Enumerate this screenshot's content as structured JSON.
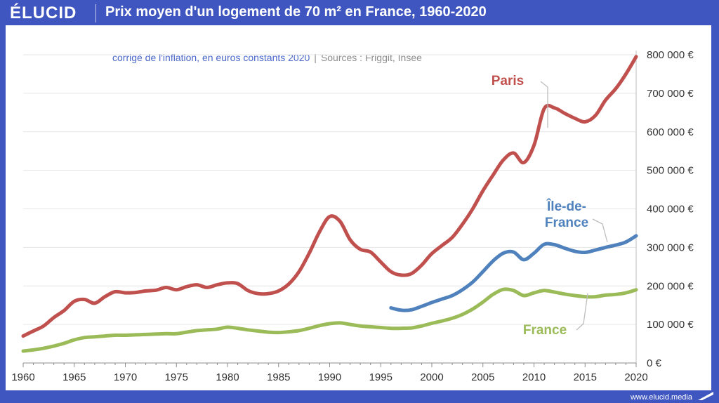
{
  "brand": {
    "logo": "ÉLUCID",
    "website": "www.elucid.media"
  },
  "header": {
    "title": "Prix moyen d'un logement de 70 m² en France, 1960-2020",
    "subtitle_main": "corrigé de l'inflation, en euros constants 2020",
    "subtitle_separator": "|",
    "subtitle_sources": "Sources : Friggit, Insee"
  },
  "colors": {
    "frame": "#3f56c0",
    "paris": "#c0504d",
    "ile_de_france": "#4f81bd",
    "france": "#9bbb59",
    "grid": "#e6e6e6",
    "axis_text": "#333333"
  },
  "chart_data": {
    "type": "line",
    "title": "Prix moyen d'un logement de 70 m² en France, 1960-2020",
    "xlabel": "",
    "ylabel": "",
    "xlim": [
      1960,
      2020
    ],
    "ylim": [
      0,
      800000
    ],
    "grid": true,
    "y_axis_position": "right",
    "x_ticks": [
      1960,
      1965,
      1970,
      1975,
      1980,
      1985,
      1990,
      1995,
      2000,
      2005,
      2010,
      2015,
      2020
    ],
    "y_ticks": [
      0,
      100000,
      200000,
      300000,
      400000,
      500000,
      600000,
      700000,
      800000
    ],
    "y_tick_labels": [
      "0 €",
      "100 000 €",
      "200 000 €",
      "300 000 €",
      "400 000 €",
      "500 000 €",
      "600 000 €",
      "700 000 €",
      "800 000 €"
    ],
    "series": [
      {
        "name": "Paris",
        "label": "Paris",
        "color": "#c0504d",
        "x": [
          1960,
          1961,
          1962,
          1963,
          1964,
          1965,
          1966,
          1967,
          1968,
          1969,
          1970,
          1971,
          1972,
          1973,
          1974,
          1975,
          1976,
          1977,
          1978,
          1979,
          1980,
          1981,
          1982,
          1983,
          1984,
          1985,
          1986,
          1987,
          1988,
          1989,
          1990,
          1991,
          1992,
          1993,
          1994,
          1995,
          1996,
          1997,
          1998,
          1999,
          2000,
          2001,
          2002,
          2003,
          2004,
          2005,
          2006,
          2007,
          2008,
          2009,
          2010,
          2011,
          2012,
          2013,
          2014,
          2015,
          2016,
          2017,
          2018,
          2019,
          2020
        ],
        "values": [
          70000,
          83000,
          96000,
          118000,
          136000,
          160000,
          165000,
          155000,
          172000,
          185000,
          182000,
          183000,
          187000,
          189000,
          196000,
          190000,
          198000,
          203000,
          196000,
          203000,
          208000,
          206000,
          188000,
          180000,
          180000,
          187000,
          205000,
          237000,
          285000,
          340000,
          380000,
          368000,
          320000,
          295000,
          288000,
          262000,
          237000,
          228000,
          232000,
          254000,
          284000,
          305000,
          326000,
          360000,
          400000,
          447000,
          488000,
          527000,
          545000,
          520000,
          565000,
          660000,
          662000,
          648000,
          635000,
          626000,
          642000,
          682000,
          712000,
          750000,
          795000
        ]
      },
      {
        "name": "Île-de-France",
        "label": "Île-de-France",
        "color": "#4f81bd",
        "x": [
          1996,
          1997,
          1998,
          1999,
          2000,
          2001,
          2002,
          2003,
          2004,
          2005,
          2006,
          2007,
          2008,
          2009,
          2010,
          2011,
          2012,
          2013,
          2014,
          2015,
          2016,
          2017,
          2018,
          2019,
          2020
        ],
        "values": [
          143000,
          137000,
          138000,
          147000,
          157000,
          166000,
          175000,
          190000,
          210000,
          237000,
          265000,
          285000,
          288000,
          268000,
          285000,
          308000,
          307000,
          298000,
          290000,
          287000,
          293000,
          300000,
          306000,
          314000,
          330000
        ]
      },
      {
        "name": "France",
        "label": "France",
        "color": "#9bbb59",
        "x": [
          1960,
          1961,
          1962,
          1963,
          1964,
          1965,
          1966,
          1967,
          1968,
          1969,
          1970,
          1971,
          1972,
          1973,
          1974,
          1975,
          1976,
          1977,
          1978,
          1979,
          1980,
          1981,
          1982,
          1983,
          1984,
          1985,
          1986,
          1987,
          1988,
          1989,
          1990,
          1991,
          1992,
          1993,
          1994,
          1995,
          1996,
          1997,
          1998,
          1999,
          2000,
          2001,
          2002,
          2003,
          2004,
          2005,
          2006,
          2007,
          2008,
          2009,
          2010,
          2011,
          2012,
          2013,
          2014,
          2015,
          2016,
          2017,
          2018,
          2019,
          2020
        ],
        "values": [
          31000,
          34000,
          38000,
          44000,
          51000,
          60000,
          66000,
          68000,
          70000,
          72000,
          72000,
          73000,
          74000,
          75000,
          76000,
          76000,
          80000,
          84000,
          86000,
          88000,
          93000,
          90000,
          86000,
          83000,
          80000,
          79000,
          81000,
          84000,
          90000,
          97000,
          102000,
          104000,
          100000,
          96000,
          94000,
          92000,
          90000,
          90000,
          91000,
          96000,
          103000,
          109000,
          116000,
          126000,
          140000,
          158000,
          178000,
          191000,
          188000,
          175000,
          182000,
          188000,
          184000,
          179000,
          175000,
          172000,
          172000,
          176000,
          178000,
          182000,
          190000
        ]
      }
    ]
  }
}
